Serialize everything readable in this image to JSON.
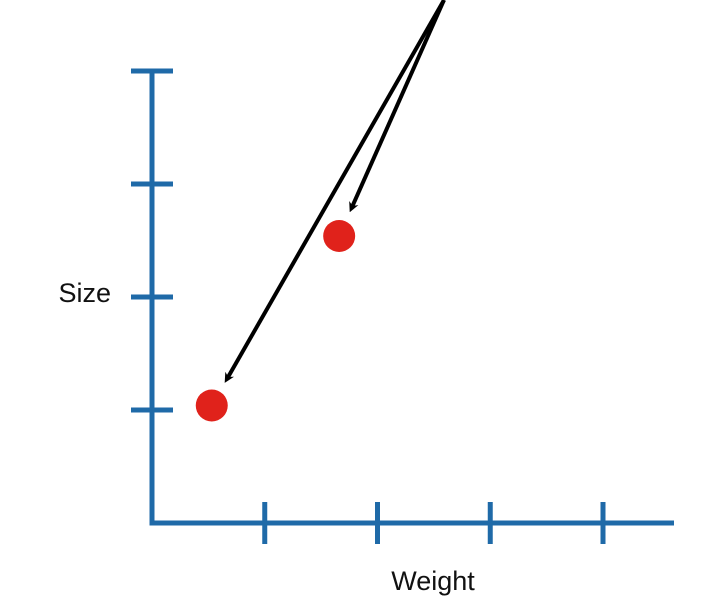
{
  "chart_data": {
    "type": "scatter",
    "title": "",
    "xlabel": "Weight",
    "ylabel": "Size",
    "xlim": [
      0,
      4.5
    ],
    "ylim": [
      0,
      4
    ],
    "x_ticks": [
      1,
      2,
      3,
      4
    ],
    "y_ticks": [
      1,
      2,
      3,
      4
    ],
    "tick_labels_shown": false,
    "grid": false,
    "series": [
      {
        "points": [
          {
            "x": 0.53,
            "y": 1.04
          },
          {
            "x": 1.66,
            "y": 2.54
          }
        ]
      }
    ],
    "annotations": [
      {
        "kind": "arrow",
        "points_to_index": 0,
        "from_label": ""
      },
      {
        "kind": "arrow",
        "points_to_index": 1,
        "from_label": ""
      }
    ]
  },
  "colors": {
    "axis": "#1f6aa8",
    "points": "#e0221b",
    "arrows": "#000000",
    "text": "#111111"
  }
}
